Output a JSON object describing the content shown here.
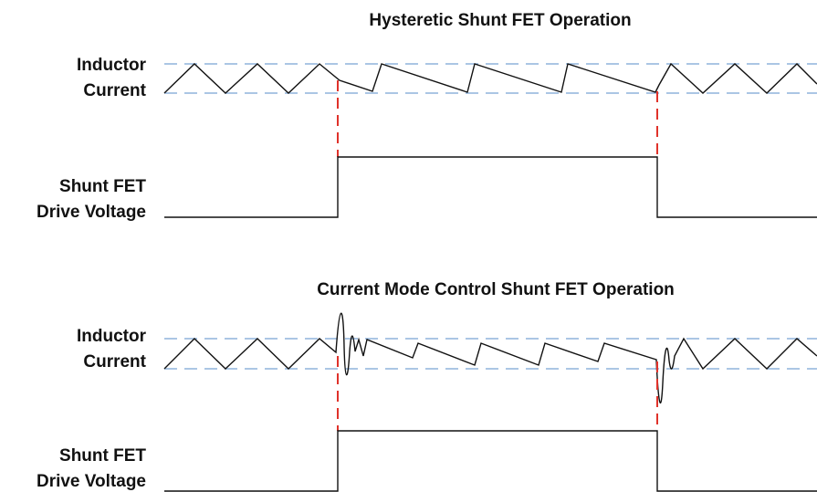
{
  "panels": [
    {
      "title": "Hysteretic Shunt FET Operation",
      "current_label": [
        "Inductor",
        "Current"
      ],
      "drive_label": [
        "Shunt FET",
        "Drive Voltage"
      ]
    },
    {
      "title": "Current Mode Control Shunt FET Operation",
      "current_label": [
        "Inductor",
        "Current"
      ],
      "drive_label": [
        "Shunt FET",
        "Drive Voltage"
      ]
    }
  ]
}
